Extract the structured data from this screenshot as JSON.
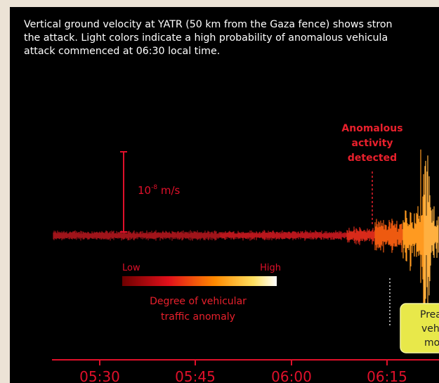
{
  "caption": {
    "line1": "Vertical ground velocity at YATR (50 km from the Gaza fence) shows stron",
    "line2": "the attack. Light colors indicate a high probability of anomalous vehicula",
    "line3": "attack commenced at 06:30 local time."
  },
  "chart_data": {
    "type": "line",
    "x_ticks": [
      "05:30",
      "05:45",
      "06:00",
      "06:15"
    ],
    "scale_bar": "10-8 m/s",
    "annotations": {
      "anomalous": [
        "Anomalous",
        "activity",
        "detected"
      ],
      "callout": [
        "Prea",
        "vehi",
        "mo"
      ]
    },
    "colorbar": {
      "low": "Low",
      "high": "High",
      "title": [
        "Degree of vehicular",
        "traffic anomaly"
      ]
    }
  },
  "colors": {
    "background": "#000000",
    "accent_red": "#e0102a",
    "annotation_red": "#e8202c",
    "callout_fill": "#e8e84a",
    "page_border": "#ece3d6"
  }
}
